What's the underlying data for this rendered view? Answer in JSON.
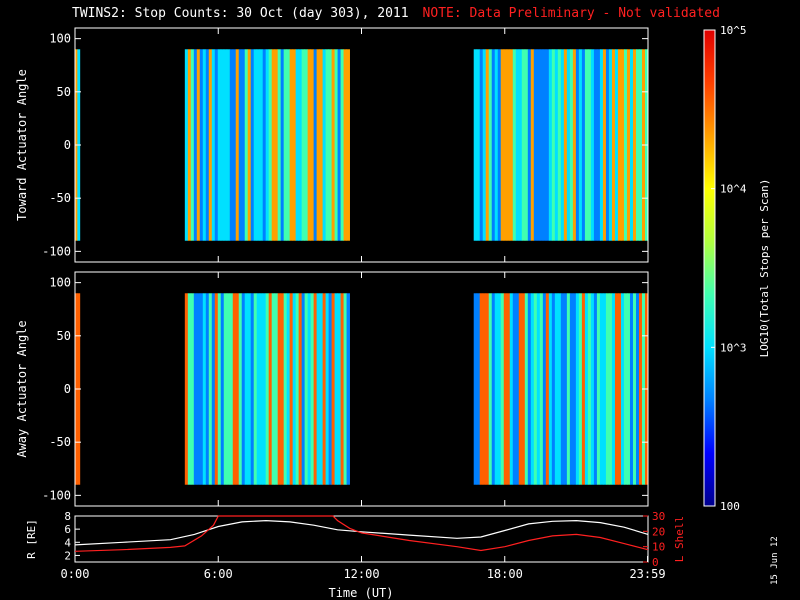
{
  "title": {
    "main": "TWINS2: Stop Counts: 30 Oct (day 303), 2011",
    "note": "NOTE: Data Preliminary - Not validated",
    "note_color": "#ff2020"
  },
  "date_stamp": "15 Jun 12",
  "colorbar": {
    "label": "LOG10(Total Stops per Scan)",
    "tick_labels": [
      "10^5",
      "10^4",
      "10^3",
      "100"
    ],
    "tick_values": [
      100000,
      10000,
      1000,
      100
    ],
    "range": [
      100,
      100000
    ],
    "scale": "log",
    "colormap": [
      "#00008c",
      "#0000ff",
      "#0080ff",
      "#00e0ff",
      "#40ffb0",
      "#b0ff40",
      "#ffff00",
      "#ffa000",
      "#ff4000",
      "#e00000"
    ]
  },
  "chart_data": [
    {
      "type": "heatmap",
      "name": "toward",
      "ylabel": "Toward Actuator Angle",
      "ylim": [
        -110,
        110
      ],
      "yticks": [
        100,
        50,
        0,
        -50,
        -100
      ],
      "xlim": [
        0,
        24
      ],
      "data_intervals_hours": [
        [
          0,
          0.2
        ],
        [
          4.6,
          11.5
        ],
        [
          16.7,
          24
        ]
      ],
      "y_extent": [
        -90,
        90
      ],
      "dominant_colors": [
        "#ffa000",
        "#40ffb0",
        "#00e0ff",
        "#0080ff"
      ]
    },
    {
      "type": "heatmap",
      "name": "away",
      "ylabel": "Away Actuator Angle",
      "ylim": [
        -110,
        110
      ],
      "yticks": [
        100,
        50,
        0,
        -50,
        -100
      ],
      "xlim": [
        0,
        24
      ],
      "data_intervals_hours": [
        [
          0,
          0.2
        ],
        [
          4.6,
          11.5
        ],
        [
          16.7,
          24
        ]
      ],
      "y_extent": [
        -90,
        90
      ],
      "dominant_colors": [
        "#ff6000",
        "#40ffb0",
        "#00e0ff",
        "#0080ff"
      ]
    },
    {
      "type": "line",
      "name": "orbit",
      "ylabel_left": "R [RE]",
      "ylabel_right": "L Shell",
      "ylim_left": [
        1,
        8
      ],
      "yticks_left": [
        2,
        4,
        6,
        8
      ],
      "ylim_right": [
        0,
        30
      ],
      "yticks_right": [
        0,
        10,
        20,
        30
      ],
      "xlabel": "Time (UT)",
      "xticks": [
        "0:00",
        "6:00",
        "12:00",
        "18:00",
        "23:59"
      ],
      "xtick_values": [
        0,
        6,
        12,
        18,
        23.98
      ],
      "series": [
        {
          "name": "R",
          "color": "#ffffff",
          "axis": "left",
          "x": [
            0,
            2,
            4,
            5,
            6,
            7,
            8,
            9,
            10,
            11,
            12,
            14,
            16,
            17,
            18,
            19,
            20,
            21,
            22,
            23,
            24
          ],
          "values": [
            3.6,
            4.0,
            4.4,
            5.2,
            6.4,
            7.1,
            7.3,
            7.1,
            6.6,
            5.9,
            5.6,
            5.1,
            4.6,
            4.8,
            5.8,
            6.8,
            7.2,
            7.3,
            7.0,
            6.3,
            5.2
          ]
        },
        {
          "name": "L Shell",
          "color": "#ff2020",
          "axis": "right",
          "x": [
            0,
            2,
            4,
            4.6,
            5.3,
            5.8,
            6.0,
            10.8,
            11.0,
            11.5,
            12,
            14,
            16,
            17,
            18,
            19,
            20,
            21,
            22,
            23,
            24
          ],
          "values": [
            7,
            8,
            9.5,
            10.5,
            17,
            24,
            30,
            30,
            27,
            22,
            19,
            14,
            10,
            7.5,
            10,
            14,
            17,
            18,
            16,
            12,
            8
          ]
        }
      ]
    }
  ]
}
